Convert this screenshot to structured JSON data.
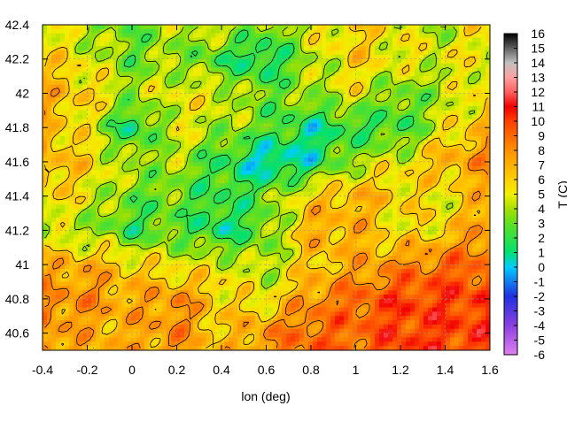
{
  "chart_data": {
    "type": "heatmap",
    "xlabel": "lon (deg)",
    "ylabel": "",
    "colorbar_label": "T (C)",
    "xlim": [
      -0.4,
      1.6
    ],
    "ylim": [
      40.5,
      42.4
    ],
    "x_ticks": [
      "-0.4",
      "-0.2",
      "0",
      "0.2",
      "0.4",
      "0.6",
      "0.8",
      "1",
      "1.2",
      "1.4",
      "1.6"
    ],
    "y_ticks": [
      "40.6",
      "40.8",
      "41",
      "41.2",
      "41.4",
      "41.6",
      "41.8",
      "42",
      "42.2",
      "42.4"
    ],
    "colorbar_range": [
      -6,
      16
    ],
    "colorbar_ticks": [
      "-6",
      "-5",
      "-4",
      "-3",
      "-2",
      "-1",
      "0",
      "1",
      "2",
      "3",
      "4",
      "5",
      "6",
      "7",
      "8",
      "9",
      "10",
      "11",
      "12",
      "13",
      "14",
      "15",
      "16"
    ],
    "grid": true,
    "colormap_stops": [
      {
        "t": -6,
        "color": "#e080f0"
      },
      {
        "t": -4,
        "color": "#8a40e0"
      },
      {
        "t": -2,
        "color": "#2030e0"
      },
      {
        "t": 0,
        "color": "#00ccff"
      },
      {
        "t": 1,
        "color": "#00e070"
      },
      {
        "t": 3,
        "color": "#60e020"
      },
      {
        "t": 4,
        "color": "#a8e000"
      },
      {
        "t": 5,
        "color": "#f0f000"
      },
      {
        "t": 6,
        "color": "#ffd000"
      },
      {
        "t": 8,
        "color": "#ff9000"
      },
      {
        "t": 10,
        "color": "#ff4000"
      },
      {
        "t": 11,
        "color": "#f00000"
      },
      {
        "t": 12,
        "color": "#ff6060"
      },
      {
        "t": 13,
        "color": "#ffa0a0"
      },
      {
        "t": 14,
        "color": "#c0c0c0"
      },
      {
        "t": 15,
        "color": "#606060"
      },
      {
        "t": 16,
        "color": "#000000"
      }
    ],
    "temperature_field": {
      "lon": [
        -0.4,
        -0.2,
        0,
        0.2,
        0.4,
        0.6,
        0.8,
        1.0,
        1.2,
        1.4,
        1.6
      ],
      "lat": [
        42.4,
        42.2,
        42.0,
        41.8,
        41.6,
        41.4,
        41.2,
        41.0,
        40.8,
        40.6
      ],
      "values": [
        [
          5,
          4,
          3,
          4,
          5,
          3,
          5,
          6,
          5,
          4,
          6
        ],
        [
          6,
          5,
          3,
          4,
          2,
          1,
          4,
          6,
          5,
          5,
          5
        ],
        [
          7,
          6,
          4,
          5,
          5,
          3,
          4,
          5,
          3,
          4,
          6
        ],
        [
          7,
          5,
          1,
          5,
          4,
          3,
          1,
          2,
          2,
          5,
          7
        ],
        [
          7,
          6,
          4,
          4,
          2,
          0,
          1,
          4,
          5,
          7,
          8
        ],
        [
          6,
          5,
          3,
          3,
          2,
          3,
          6,
          7,
          6,
          5,
          7
        ],
        [
          4,
          4,
          2,
          3,
          1,
          3,
          7,
          7,
          5,
          6,
          8
        ],
        [
          7,
          7,
          6,
          5,
          5,
          4,
          6,
          7,
          8,
          9,
          9
        ],
        [
          8,
          8,
          7,
          8,
          6,
          5,
          8,
          9,
          10,
          10,
          10
        ],
        [
          8,
          7,
          7,
          8,
          6,
          8,
          9,
          9,
          10,
          10,
          10
        ]
      ]
    }
  }
}
